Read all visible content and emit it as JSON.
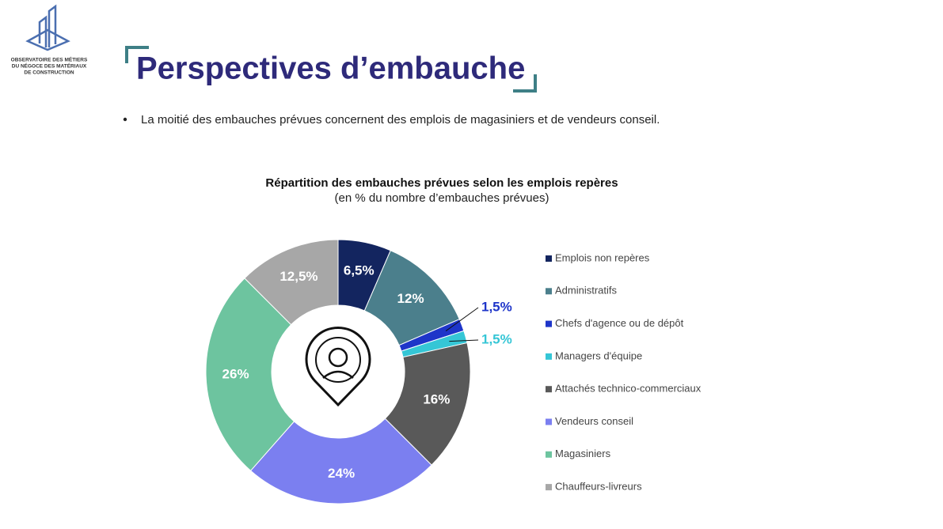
{
  "logo": {
    "lines": [
      "OBSERVATOIRE DES MÉTIERS",
      "DU NÉGOCE DES MATÉRIAUX",
      "DE CONSTRUCTION"
    ]
  },
  "header": {
    "title": "Perspectives d’embauche"
  },
  "bullet": "La moitié des embauches prévues concernent des emplois de magasiniers et de vendeurs conseil.",
  "chart_data": {
    "type": "donut",
    "title": "Répartition des embauches prévues selon les emplois repères",
    "subtitle": "(en % du nombre d’embauches prévues)",
    "categories": [
      "Emplois non repères",
      "Administratifs",
      "Chefs d'agence ou de dépôt",
      "Managers d'équipe",
      "Attachés technico-commerciaux",
      "Vendeurs conseil",
      "Magasiniers",
      "Chauffeurs-livreurs"
    ],
    "values": [
      6.5,
      12,
      1.5,
      1.5,
      16,
      24,
      26,
      12.5
    ],
    "value_labels": [
      "6,5%",
      "12%",
      "1,5%",
      "1,5%",
      "16%",
      "24%",
      "26%",
      "12,5%"
    ],
    "colors": [
      "#13255f",
      "#4b7f8c",
      "#1e35c9",
      "#35c6d6",
      "#595959",
      "#7b7ff0",
      "#6dc49f",
      "#a7a7a7"
    ],
    "legend": "right"
  }
}
